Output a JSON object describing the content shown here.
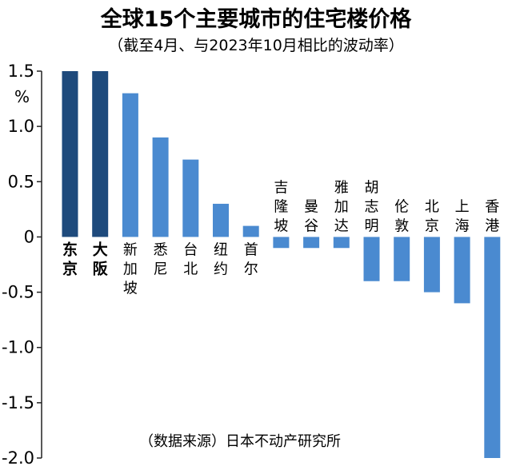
{
  "chart_data": {
    "type": "bar",
    "title": "全球15个主要城市的住宅楼价格",
    "subtitle": "（截至4月、与2023年10月相比的波动率）",
    "ylabel": "%",
    "ylim": [
      -2.0,
      1.5
    ],
    "yticks": [
      {
        "value": 1.5,
        "label": "1.5"
      },
      {
        "value": 1.0,
        "label": "1.0"
      },
      {
        "value": 0.5,
        "label": "0.5"
      },
      {
        "value": 0,
        "label": "0"
      },
      {
        "value": -0.5,
        "label": "-0.5"
      },
      {
        "value": -1.0,
        "label": "-1.0"
      },
      {
        "value": -1.5,
        "label": "-1.5"
      },
      {
        "value": -2.0,
        "label": "-2.0"
      }
    ],
    "categories": [
      "东京",
      "大阪",
      "新加坡",
      "悉尼",
      "台北",
      "纽约",
      "首尔",
      "吉隆坡",
      "曼谷",
      "雅加达",
      "胡志明",
      "伦敦",
      "北京",
      "上海",
      "香港"
    ],
    "values": [
      1.5,
      1.5,
      1.3,
      0.9,
      0.7,
      0.3,
      0.1,
      -0.1,
      -0.1,
      -0.1,
      -0.4,
      -0.4,
      -0.5,
      -0.6,
      -2.0
    ],
    "highlighted": [
      "东京",
      "大阪"
    ],
    "source": "（数据来源）日本不动产研究所",
    "colors": {
      "highlight": "#1e4a7c",
      "bar": "#4a8ad0",
      "axis": "#222222"
    }
  }
}
